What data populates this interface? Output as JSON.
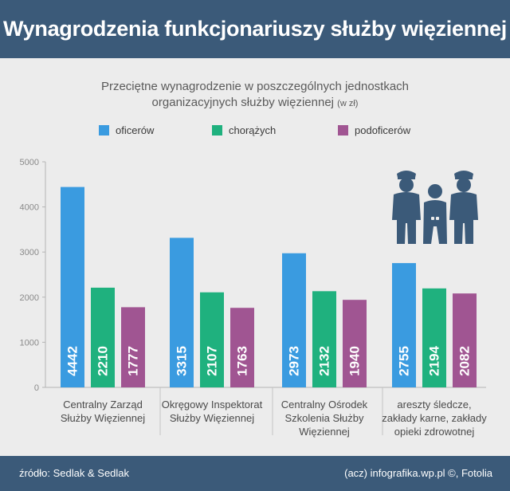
{
  "header": {
    "title": "Wynagrodzenia funkcjonariuszy służby więziennej"
  },
  "subtitle": {
    "line1": "Przeciętne wynagrodzenie w poszczególnych jednostkach",
    "line2": "organizacyjnych służby więziennej",
    "unit": "(w zł)"
  },
  "footer": {
    "source": "źródło: Sedlak & Sedlak",
    "credit": "(acz) infografika.wp.pl ©, Fotolia"
  },
  "colors": {
    "header_bg": "#3b5a79",
    "panel_bg": "#ececec",
    "oficerow": "#3a9be0",
    "chorazych": "#1fb17e",
    "podoficerow": "#a05592",
    "icon": "#3b5a79"
  },
  "icon": "police-officers-escorting-prisoner-icon",
  "chart_data": {
    "type": "bar",
    "categories": [
      [
        "Centralny Zarząd",
        "Służby Więziennej"
      ],
      [
        "Okręgowy Inspektorat",
        "Służby Więziennej"
      ],
      [
        "Centralny Ośrodek",
        "Szkolenia Służby",
        "Więziennej"
      ],
      [
        "areszty śledcze,",
        "zakłady karne, zakłady",
        "opieki zdrowotnej"
      ]
    ],
    "series": [
      {
        "name": "oficerów",
        "color": "#3a9be0",
        "values": [
          4442,
          3315,
          2973,
          2755
        ]
      },
      {
        "name": "chorążych",
        "color": "#1fb17e",
        "values": [
          2210,
          2107,
          2132,
          2194
        ]
      },
      {
        "name": "podoficerów",
        "color": "#a05592",
        "values": [
          1777,
          1763,
          1940,
          2082
        ]
      }
    ],
    "ylim": [
      0,
      5000
    ],
    "yticks": [
      "0",
      "1000",
      "2000",
      "3000",
      "4000",
      "5000"
    ],
    "grid": false,
    "legend": "top"
  }
}
